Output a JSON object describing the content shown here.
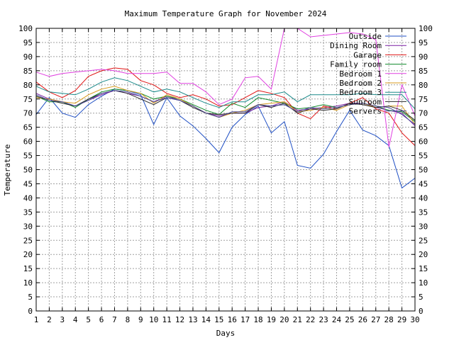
{
  "chart_data": {
    "type": "line",
    "title": "Maximum Temperature Graph for November 2024",
    "xlabel": "Days",
    "ylabel": "Temperature",
    "xlim": [
      1,
      30
    ],
    "ylim": [
      0,
      100
    ],
    "grid": true,
    "legend_position": "top-right",
    "x_ticks": [
      "1",
      "2",
      "3",
      "4",
      "5",
      "6",
      "7",
      "8",
      "9",
      "10",
      "11",
      "12",
      "13",
      "14",
      "15",
      "16",
      "17",
      "18",
      "19",
      "20",
      "21",
      "22",
      "23",
      "24",
      "25",
      "26",
      "27",
      "28",
      "29",
      "30"
    ],
    "y_ticks": [
      "0",
      "5",
      "10",
      "15",
      "20",
      "25",
      "30",
      "35",
      "40",
      "45",
      "50",
      "55",
      "60",
      "65",
      "70",
      "75",
      "80",
      "85",
      "90",
      "95",
      "100"
    ],
    "x": [
      1,
      2,
      3,
      4,
      5,
      6,
      7,
      8,
      9,
      10,
      11,
      12,
      13,
      14,
      15,
      16,
      17,
      18,
      19,
      20,
      21,
      22,
      23,
      24,
      25,
      26,
      27,
      28,
      29,
      30
    ],
    "series": [
      {
        "name": "Outside",
        "color": "#1f4fc4",
        "values": [
          69.5,
          75.5,
          70,
          68.5,
          73,
          76,
          78.5,
          78,
          76.5,
          66,
          75.5,
          69,
          65.5,
          61,
          56,
          65,
          69.5,
          72.5,
          63,
          67,
          51.5,
          50.5,
          55.5,
          63.5,
          71,
          64,
          62,
          58.5,
          43.5,
          47
        ]
      },
      {
        "name": "Dining Room",
        "color": "#7a1fa2",
        "values": [
          77,
          75,
          74,
          72.5,
          74.5,
          76.5,
          78,
          77,
          76,
          74,
          76,
          74.5,
          72.5,
          70,
          69,
          70,
          70,
          72,
          72.5,
          74,
          71,
          71.5,
          72,
          72.5,
          73.5,
          73.5,
          72,
          71,
          70,
          65.5
        ]
      },
      {
        "name": "Garage",
        "color": "#e01414",
        "values": [
          81,
          77.5,
          75.5,
          78,
          83,
          85,
          86,
          85.5,
          81.5,
          80,
          77,
          75.5,
          76.5,
          75,
          72.5,
          73,
          75.5,
          78,
          77,
          75.5,
          70,
          68,
          72.5,
          71.5,
          73.5,
          75.5,
          71.5,
          70,
          63,
          58.5
        ]
      },
      {
        "name": "Family room",
        "color": "#0f8a2a",
        "values": [
          76,
          74,
          74,
          72,
          75,
          77.5,
          78.5,
          78,
          77,
          75,
          76,
          75,
          73,
          71,
          69.5,
          73.5,
          72,
          75.5,
          74.5,
          73.5,
          71.5,
          72,
          73,
          72,
          73,
          73.5,
          72.5,
          71,
          70.5,
          67
        ]
      },
      {
        "name": "Bedroom 1",
        "color": "#e040e0",
        "values": [
          84.5,
          83,
          84,
          84.5,
          85,
          85.5,
          85,
          84,
          84,
          84,
          84.5,
          80.5,
          80.5,
          77.5,
          73,
          75,
          82.5,
          83,
          78.5,
          100,
          100,
          97,
          97.5,
          98,
          98.5,
          98,
          96,
          58,
          80,
          69
        ]
      },
      {
        "name": "Bedroom 2",
        "color": "#d79a1c",
        "values": [
          75.5,
          75,
          74,
          73.5,
          76.5,
          78.5,
          79.5,
          78,
          77,
          73.5,
          76.5,
          75,
          72.5,
          70,
          68.5,
          70,
          71,
          73,
          73.5,
          74,
          70.5,
          71,
          72,
          71,
          73,
          73.5,
          72,
          72.5,
          72.5,
          66
        ]
      },
      {
        "name": "Bedroom 3",
        "color": "#1a8a8a",
        "values": [
          79.5,
          77.5,
          77,
          76.5,
          78.5,
          81,
          82.5,
          81.5,
          79.5,
          77.5,
          78.5,
          77.5,
          75.5,
          73.5,
          72,
          74,
          74,
          76.5,
          76.5,
          77.5,
          74,
          76.5,
          76.5,
          76.5,
          76.5,
          77,
          76.5,
          76.5,
          76.5,
          71.5
        ]
      },
      {
        "name": "Sunroom",
        "color": "#2a2a2a",
        "values": [
          76,
          74.5,
          73.5,
          72.5,
          75,
          77,
          78,
          77,
          75,
          73,
          75.5,
          74.5,
          72,
          70,
          69.5,
          70,
          70,
          73,
          72,
          73.5,
          70,
          71.5,
          71,
          71.5,
          73.5,
          73,
          72,
          72.5,
          71,
          67.5
        ]
      },
      {
        "name": "Servers",
        "color": "#4a4a9a",
        "values": [
          76.5,
          74.5,
          74,
          72.5,
          74.5,
          77,
          78,
          77.5,
          76,
          74,
          75.5,
          74.5,
          72.5,
          70,
          68.5,
          70.5,
          70.5,
          73,
          72.5,
          73,
          70.5,
          72,
          71.5,
          72,
          73,
          73.5,
          72.5,
          72,
          69.5,
          66
        ]
      }
    ]
  }
}
